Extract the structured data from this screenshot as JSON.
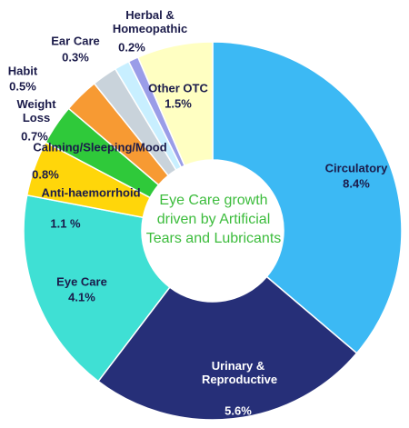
{
  "chart_data": {
    "type": "donut",
    "categories": [
      "Circulatory",
      "Urinary & Reproductive",
      "Eye Care",
      "Anti-haemorrhoid",
      "Calming/Sleeping/Mood",
      "Weight Loss",
      "Habit",
      "Ear Care",
      "Herbal & Homeopathic",
      "Other OTC"
    ],
    "values": [
      8.4,
      5.6,
      4.1,
      1.1,
      0.8,
      0.7,
      0.5,
      0.3,
      0.2,
      1.5
    ],
    "value_labels": [
      "8.4%",
      "5.6%",
      "4.1%",
      "1.1 %",
      "0.8%",
      "0.7%",
      "0.5%",
      "0.3%",
      "0.2%",
      "1.5%"
    ],
    "colors": [
      "#3cb9f4",
      "#262f78",
      "#3fe0d4",
      "#ffd60a",
      "#2fc93a",
      "#f79a33",
      "#c9d3db",
      "#c8efff",
      "#9a9de8",
      "#ffffc2"
    ],
    "annotation": "Eye Care growth driven by Artificial Tears and Lubricants"
  }
}
